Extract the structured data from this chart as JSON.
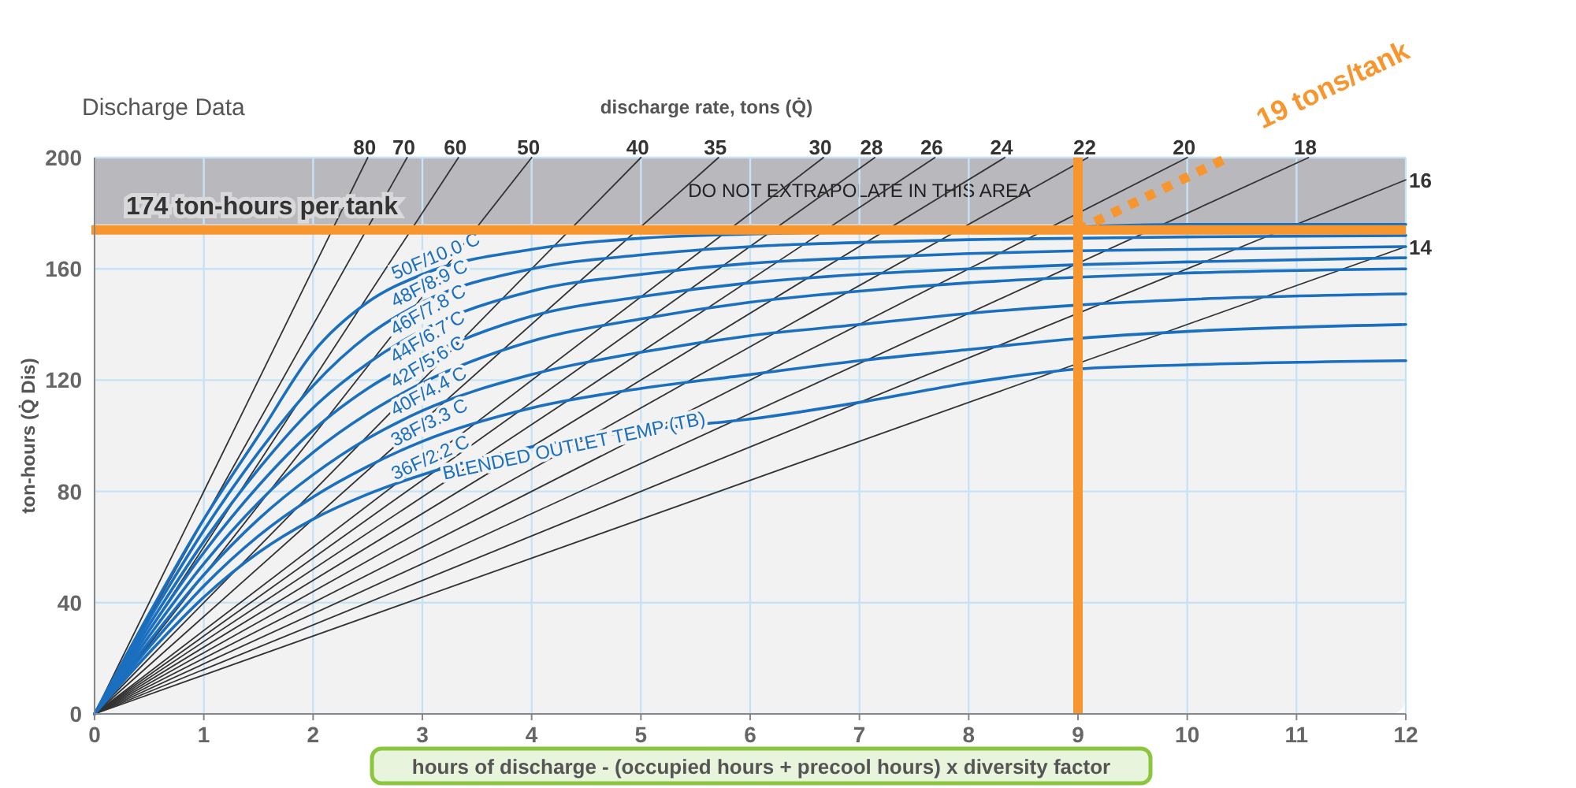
{
  "chart_data": {
    "type": "line",
    "title": "Discharge Data",
    "xlabel": "hours of discharge - (occupied hours + precool hours) x diversity factor",
    "ylabel": "ton-hours (Q̇ Dis)",
    "x2label": "discharge rate, tons (Q̇)",
    "xlim": [
      0,
      12
    ],
    "ylim": [
      0,
      200
    ],
    "xticks": [
      0,
      1,
      2,
      3,
      4,
      5,
      6,
      7,
      8,
      9,
      10,
      11,
      12
    ],
    "yticks": [
      0,
      40,
      80,
      120,
      160,
      200
    ],
    "grid": true,
    "legend": false,
    "marker": "none",
    "series": [
      {
        "name": "80",
        "color": "#333333",
        "x": [
          0,
          2.5
        ],
        "values": [
          0,
          200
        ]
      },
      {
        "name": "70",
        "color": "#333333",
        "x": [
          0,
          2.86
        ],
        "values": [
          0,
          200
        ]
      },
      {
        "name": "60",
        "color": "#333333",
        "x": [
          0,
          3.33
        ],
        "values": [
          0,
          200
        ]
      },
      {
        "name": "50",
        "color": "#333333",
        "x": [
          0,
          4
        ],
        "values": [
          0,
          200
        ]
      },
      {
        "name": "40",
        "color": "#333333",
        "x": [
          0,
          5
        ],
        "values": [
          0,
          200
        ]
      },
      {
        "name": "35",
        "color": "#333333",
        "x": [
          0,
          5.71
        ],
        "values": [
          0,
          200
        ]
      },
      {
        "name": "30",
        "color": "#333333",
        "x": [
          0,
          6.67
        ],
        "values": [
          0,
          200
        ]
      },
      {
        "name": "28",
        "color": "#333333",
        "x": [
          0,
          7.14
        ],
        "values": [
          0,
          200
        ]
      },
      {
        "name": "26",
        "color": "#333333",
        "x": [
          0,
          7.69
        ],
        "values": [
          0,
          200
        ]
      },
      {
        "name": "24",
        "color": "#333333",
        "x": [
          0,
          8.33
        ],
        "values": [
          0,
          200
        ]
      },
      {
        "name": "22",
        "color": "#333333",
        "x": [
          0,
          9.09
        ],
        "values": [
          0,
          200
        ]
      },
      {
        "name": "20",
        "color": "#333333",
        "x": [
          0,
          10
        ],
        "values": [
          0,
          200
        ]
      },
      {
        "name": "18",
        "color": "#333333",
        "x": [
          0,
          11.11
        ],
        "values": [
          0,
          200
        ]
      },
      {
        "name": "16",
        "color": "#333333",
        "x": [
          0,
          12
        ],
        "values": [
          0,
          192
        ]
      },
      {
        "name": "14",
        "color": "#333333",
        "x": [
          0,
          12
        ],
        "values": [
          0,
          168
        ]
      },
      {
        "name": "50F/10.0 C",
        "color": "#1a6fbf",
        "x": [
          0,
          0.5,
          1,
          1.5,
          2,
          2.5,
          3,
          4,
          5,
          6,
          7,
          8,
          9,
          10,
          12
        ],
        "values": [
          0,
          36,
          70,
          100,
          130,
          148,
          158,
          167,
          171,
          172.5,
          null,
          174,
          null,
          176,
          176
        ]
      },
      {
        "name": "48F/8.9 C",
        "color": "#1a6fbf",
        "x": [
          0,
          0.5,
          1,
          1.5,
          2,
          2.5,
          3,
          4,
          5,
          6,
          7,
          8,
          9,
          10,
          12
        ],
        "values": [
          0,
          34,
          66,
          94,
          118,
          136,
          148,
          160,
          165,
          168,
          169.5,
          170.5,
          171,
          171.5,
          172
        ]
      },
      {
        "name": "46F/7.8 C",
        "color": "#1a6fbf",
        "x": [
          0,
          0.5,
          1,
          1.5,
          2,
          2.5,
          3,
          4,
          5,
          6,
          7,
          8,
          9,
          10,
          12
        ],
        "values": [
          0,
          32,
          62,
          88,
          110,
          126,
          138,
          152,
          158,
          162,
          164,
          165.5,
          166.5,
          167,
          168
        ]
      },
      {
        "name": "44F/6.7 C",
        "color": "#1a6fbf",
        "x": [
          0,
          0.5,
          1,
          1.5,
          2,
          2.5,
          3,
          4,
          5,
          6,
          7,
          8,
          9,
          10,
          12
        ],
        "values": [
          0,
          30,
          58,
          82,
          102,
          117,
          128,
          143,
          150,
          155,
          158,
          160,
          161.5,
          162.5,
          164
        ]
      },
      {
        "name": "42F/5.6 C",
        "color": "#1a6fbf",
        "x": [
          0,
          0.5,
          1,
          1.5,
          2,
          2.5,
          3,
          4,
          5,
          6,
          7,
          8,
          9,
          10,
          12
        ],
        "values": [
          0,
          28,
          54,
          76,
          94,
          108,
          119,
          134,
          142,
          148,
          152,
          155,
          157,
          158.5,
          160
        ]
      },
      {
        "name": "40F/4.4 C",
        "color": "#1a6fbf",
        "x": [
          0,
          0.5,
          1,
          1.5,
          2,
          2.5,
          3,
          4,
          5,
          6,
          7,
          8,
          9,
          10,
          12
        ],
        "values": [
          0,
          26,
          50,
          70,
          86,
          99,
          109,
          122,
          130,
          136,
          140,
          144,
          147,
          149,
          151
        ]
      },
      {
        "name": "38F/3.3 C",
        "color": "#1a6fbf",
        "x": [
          0,
          0.5,
          1,
          1.5,
          2,
          2.5,
          3,
          4,
          5,
          6,
          7,
          8,
          9,
          10,
          12
        ],
        "values": [
          0,
          24,
          46,
          64,
          78,
          89,
          98,
          110,
          117,
          122,
          127,
          131,
          135,
          137.5,
          140
        ]
      },
      {
        "name": "36F/2.2 C",
        "color": "#1a6fbf",
        "x": [
          0,
          0.5,
          1,
          1.5,
          2,
          2.5,
          3,
          4,
          5,
          6,
          7,
          8,
          9,
          10,
          12
        ],
        "values": [
          0,
          22,
          42,
          58,
          70,
          79,
          86,
          96,
          102,
          106,
          112,
          119,
          124,
          125.5,
          127
        ]
      },
      {
        "name": "19 tons/tank",
        "color": "#f7962f",
        "line_style": "dotted",
        "x": [
          9,
          10.37
        ],
        "values": [
          174,
          200
        ]
      }
    ],
    "ref_lines": [
      {
        "axis": "y",
        "value": 174,
        "label": "174 ton-hours per tank",
        "color": "#f7962f"
      },
      {
        "axis": "x",
        "value": 9,
        "color": "#f7962f"
      }
    ],
    "bands": [
      {
        "axis": "y",
        "from": 176,
        "to": 200,
        "label": "DO NOT EXTRAPOLATE IN THIS AREA",
        "color": "#b9b9bd"
      }
    ],
    "annotations": [
      "BLENDED OUTLET TEMP (TB)"
    ]
  }
}
